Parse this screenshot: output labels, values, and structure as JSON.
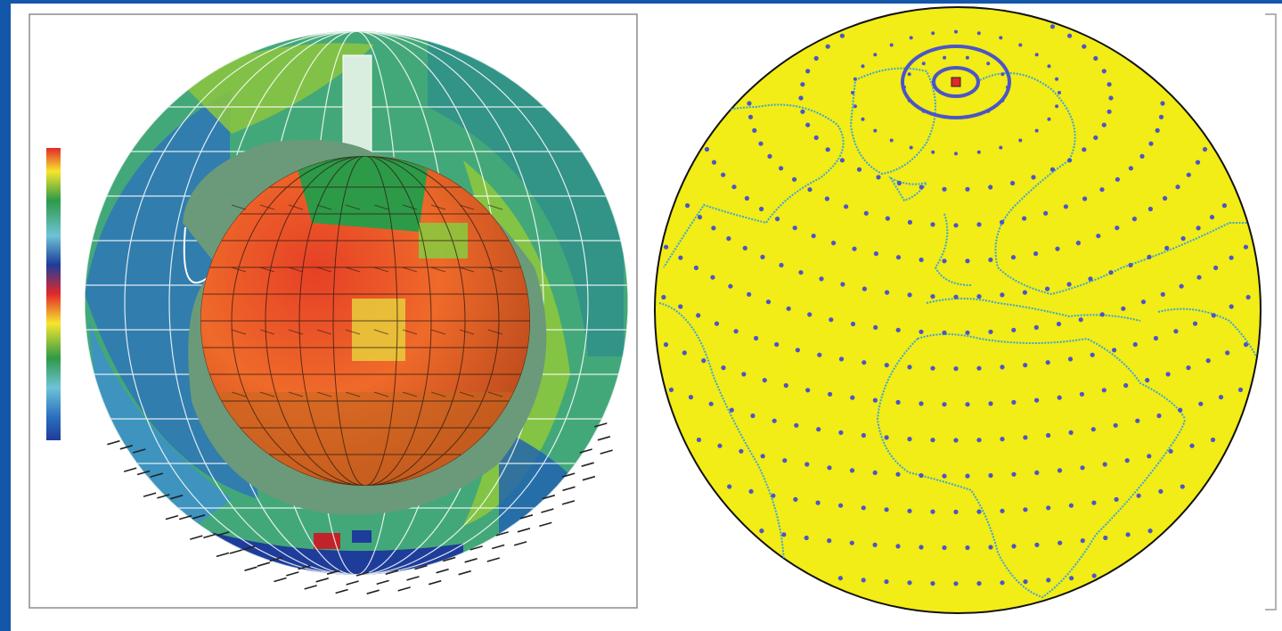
{
  "figure": {
    "left_panel": {
      "name": "cutaway-globe-model",
      "colorbar_colors": [
        "#e3282a",
        "#f08a2a",
        "#f6e62c",
        "#8cc63e",
        "#2d9a48",
        "#2f8f8a",
        "#6ec3d6",
        "#2b6fc0",
        "#1e3c9a"
      ]
    },
    "right_panel": {
      "name": "spherical-grid-earth-map",
      "colors": {
        "ocean": "#f2ec17",
        "coastline": "#3aa6d6",
        "grid_point": "#4a55c8",
        "limb": "#111111"
      }
    }
  }
}
